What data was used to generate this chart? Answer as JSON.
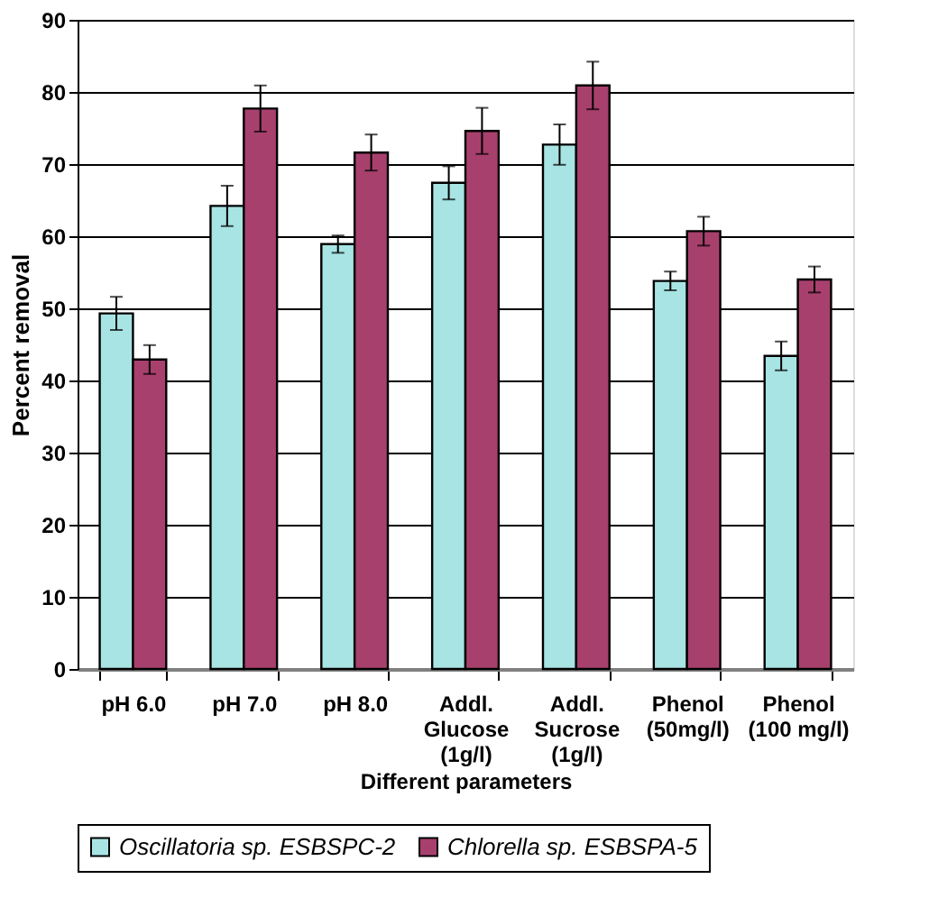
{
  "chart_data": {
    "type": "bar",
    "xlabel": "Different parameters",
    "ylabel": "Percent removal",
    "categories": [
      "pH 6.0",
      "pH 7.0",
      "pH 8.0",
      "Addl. Glucose (1g/l)",
      "Addl. Sucrose (1g/l)",
      "Phenol (50mg/l)",
      "Phenol (100 mg/l)"
    ],
    "series": [
      {
        "name": "Oscillatoria sp. ESBSPC-2",
        "color": "#a8e4e4",
        "values": [
          49.3,
          64.2,
          58.9,
          67.4,
          72.7,
          53.8,
          43.4
        ],
        "errors": [
          2.3,
          2.8,
          1.2,
          2.3,
          2.8,
          1.3,
          2.0
        ]
      },
      {
        "name": "Chlorella sp. ESBSPA-5",
        "color": "#a8406e",
        "values": [
          42.9,
          77.7,
          71.6,
          74.6,
          80.9,
          60.7,
          54.0
        ],
        "errors": [
          2.0,
          3.2,
          2.5,
          3.2,
          3.3,
          2.0,
          1.8
        ]
      }
    ],
    "ylim": [
      0,
      90
    ],
    "yticks": [
      0,
      10,
      20,
      30,
      40,
      50,
      60,
      70,
      80,
      90
    ],
    "grid": "y",
    "legend": "bottom"
  }
}
